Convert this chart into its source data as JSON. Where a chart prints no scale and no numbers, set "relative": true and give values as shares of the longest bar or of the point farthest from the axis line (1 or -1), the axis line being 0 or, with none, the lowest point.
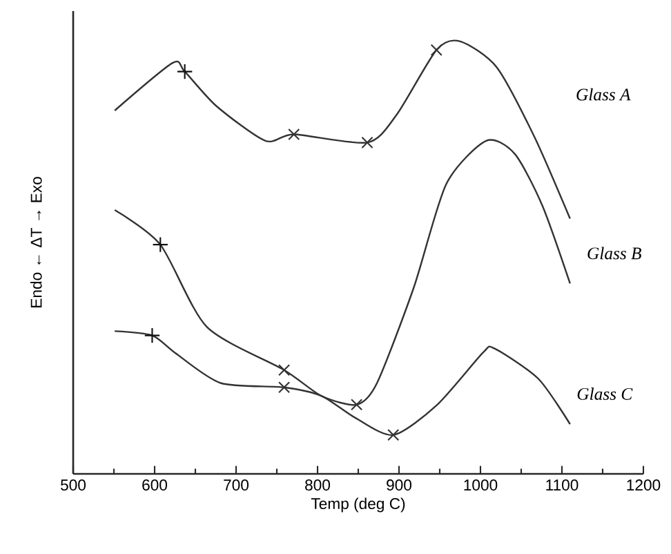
{
  "chart_data": {
    "type": "line",
    "relative": true,
    "xlabel": "Temp (deg C)",
    "ylabel": "Endo ←   ΔT   → Exo",
    "xlim": [
      500,
      1200
    ],
    "xticks": [
      500,
      600,
      700,
      800,
      900,
      1000,
      1100,
      1200
    ],
    "grid": false,
    "legend": false,
    "marker": "none",
    "line_style": "solid",
    "series": [
      {
        "name": "Glass A",
        "color": "#333333",
        "x": [
          551,
          622,
          637,
          676,
          736,
          771,
          861,
          897,
          946,
          975,
          1020,
          1066,
          1110
        ],
        "values": [
          0.84,
          0.95,
          0.93,
          0.85,
          0.77,
          0.785,
          0.766,
          0.83,
          0.98,
          1.0,
          0.94,
          0.78,
          0.59
        ]
      },
      {
        "name": "Glass B",
        "color": "#333333",
        "x": [
          551,
          607,
          664,
          759,
          805,
          848,
          873,
          918,
          958,
          1007,
          1042,
          1076,
          1110
        ],
        "values": [
          0.61,
          0.53,
          0.34,
          0.24,
          0.18,
          0.16,
          0.21,
          0.43,
          0.67,
          0.77,
          0.74,
          0.62,
          0.44
        ]
      },
      {
        "name": "Glass C",
        "color": "#333333",
        "x": [
          551,
          597,
          625,
          681,
          759,
          805,
          846,
          893,
          947,
          1003,
          1017,
          1071,
          1110
        ],
        "values": [
          0.33,
          0.32,
          0.28,
          0.21,
          0.2,
          0.18,
          0.13,
          0.09,
          0.16,
          0.28,
          0.29,
          0.22,
          0.115
        ]
      },
      {
        "type": "scatter",
        "marker": "plus",
        "color": "#111111",
        "x": [
          637,
          607,
          597
        ],
        "values": [
          0.93,
          0.53,
          0.32
        ]
      },
      {
        "type": "scatter",
        "marker": "cross",
        "color": "#333333",
        "x": [
          771,
          861,
          946,
          759,
          848,
          759,
          893
        ],
        "values": [
          0.785,
          0.766,
          0.98,
          0.24,
          0.16,
          0.2,
          0.09
        ]
      }
    ]
  }
}
